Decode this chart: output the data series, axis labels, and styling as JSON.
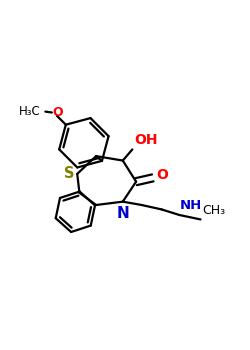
{
  "bg_color": "#ffffff",
  "figsize": [
    2.5,
    3.5
  ],
  "dpi": 100,
  "bond_color": "#000000",
  "S_color": "#808000",
  "N_color": "#0000cd",
  "O_color": "#ff0000",
  "bond_lw": 1.6,
  "xlim": [
    -0.05,
    1.05
  ],
  "ylim": [
    0.05,
    1.05
  ]
}
